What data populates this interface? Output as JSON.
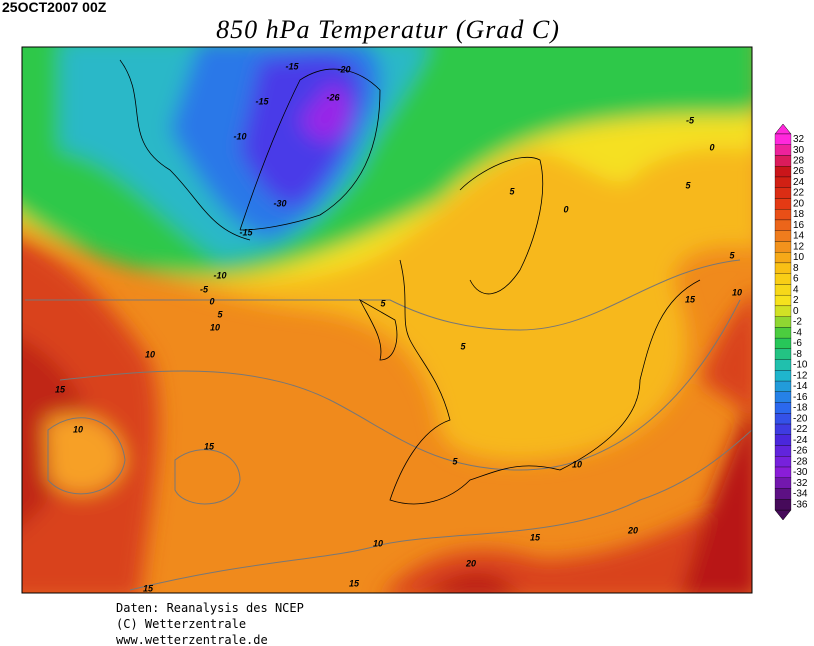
{
  "header": {
    "date": "25OCT2007 00Z",
    "title": "850 hPa Temperatur (Grad C)"
  },
  "map": {
    "contour_labels": [
      "-15",
      "-20",
      "-26",
      "-15",
      "-10",
      "-30",
      "-15",
      "-10",
      "-5",
      "0",
      "5",
      "10",
      "5",
      "0",
      "-5",
      "0",
      "5",
      "5",
      "5",
      "15",
      "10",
      "15",
      "10",
      "15",
      "5",
      "10",
      "15",
      "20",
      "20",
      "10",
      "15",
      "15",
      "10",
      "5"
    ]
  },
  "colorbar": {
    "labels": [
      32,
      30,
      28,
      26,
      24,
      22,
      20,
      18,
      16,
      14,
      12,
      10,
      8,
      6,
      4,
      2,
      0,
      -2,
      -4,
      -6,
      -8,
      -10,
      -12,
      -14,
      -16,
      -18,
      -20,
      -22,
      -24,
      -26,
      -28,
      -30,
      -32,
      -34,
      -36
    ]
  },
  "footer": {
    "lines": [
      "Daten: Reanalysis des NCEP",
      "(C) Wetterzentrale",
      "www.wetterzentrale.de"
    ]
  }
}
